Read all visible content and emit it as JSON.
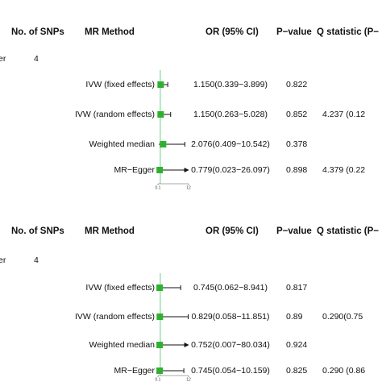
{
  "panels": [
    {
      "header": {
        "snps": "No. of SNPs",
        "method": "MR Method",
        "or": "OR (95% CI)",
        "p": "P−value",
        "q": "Q statistic (P−"
      },
      "group": {
        "label": "er",
        "snps": 4
      },
      "axis": {
        "xlim": [
          0.1,
          12
        ],
        "xticks": [
          0.1,
          12
        ]
      },
      "rows": [
        {
          "method": "IVW (fixed effects)",
          "or": 1.15,
          "lo": 0.339,
          "hi": 3.899,
          "or_ci": "1.150(0.339−3.899)",
          "p": 0.822
        },
        {
          "method": "IVW (random effects)",
          "or": 1.15,
          "lo": 0.263,
          "hi": 5.028,
          "or_ci": "1.150(0.263−5.028)",
          "p": 0.852,
          "q": "4.237 (0.12"
        },
        {
          "method": "Weighted median",
          "or": 2.076,
          "lo": 0.409,
          "hi": 10.542,
          "or_ci": "2.076(0.409−10.542)",
          "p": 0.378
        },
        {
          "method": "MR−Egger",
          "or": 0.779,
          "lo": 0.023,
          "hi": 26.097,
          "or_ci": "0.779(0.023−26.097)",
          "p": 0.898,
          "q": "4.379 (0.22"
        }
      ]
    },
    {
      "header": {
        "snps": "No. of SNPs",
        "method": "MR Method",
        "or": "OR (95% CI)",
        "p": "P−value",
        "q": "Q statistic (P−"
      },
      "group": {
        "label": "er",
        "snps": 4
      },
      "axis": {
        "xlim": [
          0.1,
          12
        ],
        "xticks": [
          0.1,
          12
        ]
      },
      "rows": [
        {
          "method": "IVW (fixed effects)",
          "or": 0.745,
          "lo": 0.062,
          "hi": 8.941,
          "or_ci": "0.745(0.062−8.941)",
          "p": 0.817
        },
        {
          "method": "IVW (random effects)",
          "or": 0.829,
          "lo": 0.058,
          "hi": 11.851,
          "or_ci": "0.829(0.058−11.851)",
          "p": 0.89,
          "q": "0.290(0.75"
        },
        {
          "method": "Weighted median",
          "or": 0.752,
          "lo": 0.007,
          "hi": 80.034,
          "or_ci": "0.752(0.007−80.034)",
          "p": 0.924
        },
        {
          "method": "MR−Egger",
          "or": 0.745,
          "lo": 0.054,
          "hi": 10.159,
          "or_ci": "0.745(0.054−10.159)",
          "p": 0.825,
          "q": "0.290 (0.86"
        }
      ]
    }
  ]
}
